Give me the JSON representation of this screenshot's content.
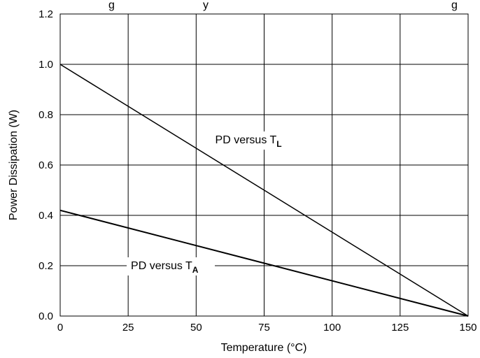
{
  "chart_data": {
    "type": "line",
    "title": "...g ...y ... ...g",
    "xlabel": "Temperature (°C)",
    "ylabel": "Power Dissipation (W)",
    "xlim": [
      0,
      150
    ],
    "ylim": [
      0,
      1.2
    ],
    "x_ticks": [
      "0",
      "25",
      "50",
      "75",
      "100",
      "125",
      "150"
    ],
    "x_tick_values": [
      0,
      25,
      50,
      75,
      100,
      125,
      150
    ],
    "y_ticks": [
      "0.0",
      "0.2",
      "0.4",
      "0.6",
      "0.8",
      "1.0",
      "1.2"
    ],
    "y_tick_values": [
      0,
      0.2,
      0.4,
      0.6,
      0.8,
      1.0,
      1.2
    ],
    "grid": true,
    "series": [
      {
        "x": [
          0,
          150
        ],
        "y": [
          1.0,
          0.0
        ]
      },
      {
        "x": [
          0,
          150
        ],
        "y": [
          0.42,
          0.0
        ]
      }
    ],
    "annotations": [
      {
        "text": "PD versus T",
        "subscript": "L",
        "x": 57,
        "y": 0.7
      },
      {
        "text": "PD versus T",
        "subscript": "A",
        "x": 26,
        "y": 0.2
      }
    ]
  }
}
